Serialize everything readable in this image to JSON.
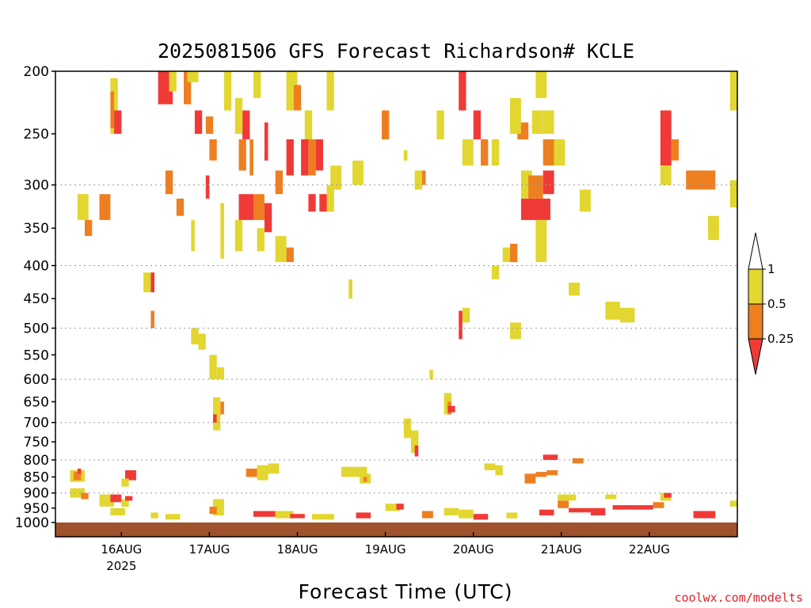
{
  "chart_data": {
    "type": "heatmap",
    "title": "2025081506 GFS Forecast Richardson# KCLE",
    "xlabel": "Forecast Time (UTC)",
    "ylabel": "",
    "credit": "coolwx.com/modelts",
    "y_axis": {
      "ticks": [
        200,
        250,
        300,
        350,
        400,
        450,
        500,
        550,
        600,
        650,
        700,
        750,
        800,
        850,
        900,
        950,
        1000
      ],
      "ylim": [
        1000,
        200
      ],
      "gridlines_at": [
        300,
        400,
        500,
        600,
        700,
        800,
        900
      ]
    },
    "x_axis": {
      "tick_labels": [
        "16AUG",
        "17AUG",
        "18AUG",
        "19AUG",
        "20AUG",
        "21AUG",
        "22AUG"
      ],
      "year_label": "2025",
      "ticks_hours": [
        18,
        42,
        66,
        90,
        114,
        138,
        162
      ],
      "xlim_hours": [
        0,
        186
      ]
    },
    "colorbar": {
      "levels": [
        "1",
        "0.5",
        "0.25"
      ],
      "bins": [
        {
          "range": "0.5-1",
          "color": "#e2d631"
        },
        {
          "range": "0.25-0.5",
          "color": "#ed7f21"
        },
        {
          "range": "<0.25",
          "color": "#f03a37"
        }
      ]
    },
    "surface_color": "#a0522d",
    "colors": {
      "yellow": "#e2d631",
      "orange": "#ed7f21",
      "red": "#f03a37",
      "grid": "#9a9a9a"
    },
    "cells": [
      {
        "t0": 15,
        "t1": 17,
        "p0": 205,
        "p1": 250,
        "c": "yellow"
      },
      {
        "t0": 15,
        "t1": 16,
        "p0": 215,
        "p1": 245,
        "c": "orange"
      },
      {
        "t0": 16,
        "t1": 18,
        "p0": 230,
        "p1": 250,
        "c": "red"
      },
      {
        "t0": 28,
        "t1": 32,
        "p0": 200,
        "p1": 225,
        "c": "red"
      },
      {
        "t0": 31,
        "t1": 33,
        "p0": 200,
        "p1": 215,
        "c": "yellow"
      },
      {
        "t0": 35,
        "t1": 37,
        "p0": 200,
        "p1": 225,
        "c": "orange"
      },
      {
        "t0": 36,
        "t1": 39,
        "p0": 200,
        "p1": 208,
        "c": "yellow"
      },
      {
        "t0": 38,
        "t1": 40,
        "p0": 230,
        "p1": 250,
        "c": "red"
      },
      {
        "t0": 41,
        "t1": 43,
        "p0": 235,
        "p1": 250,
        "c": "orange"
      },
      {
        "t0": 42,
        "t1": 44,
        "p0": 255,
        "p1": 275,
        "c": "orange"
      },
      {
        "t0": 41,
        "t1": 42,
        "p0": 290,
        "p1": 315,
        "c": "red"
      },
      {
        "t0": 30,
        "t1": 32,
        "p0": 285,
        "p1": 310,
        "c": "orange"
      },
      {
        "t0": 33,
        "t1": 35,
        "p0": 315,
        "p1": 335,
        "c": "orange"
      },
      {
        "t0": 51,
        "t1": 53,
        "p0": 230,
        "p1": 255,
        "c": "red"
      },
      {
        "t0": 50,
        "t1": 52,
        "p0": 255,
        "p1": 285,
        "c": "orange"
      },
      {
        "t0": 53,
        "t1": 54,
        "p0": 255,
        "p1": 290,
        "c": "orange"
      },
      {
        "t0": 50,
        "t1": 54,
        "p0": 310,
        "p1": 340,
        "c": "red"
      },
      {
        "t0": 54,
        "t1": 57,
        "p0": 310,
        "p1": 340,
        "c": "orange"
      },
      {
        "t0": 57,
        "t1": 59,
        "p0": 320,
        "p1": 355,
        "c": "red"
      },
      {
        "t0": 63,
        "t1": 65,
        "p0": 255,
        "p1": 290,
        "c": "red"
      },
      {
        "t0": 67,
        "t1": 69,
        "p0": 255,
        "p1": 290,
        "c": "red"
      },
      {
        "t0": 69,
        "t1": 71,
        "p0": 255,
        "p1": 290,
        "c": "orange"
      },
      {
        "t0": 71,
        "t1": 73,
        "p0": 255,
        "p1": 285,
        "c": "red"
      },
      {
        "t0": 69,
        "t1": 71,
        "p0": 310,
        "p1": 330,
        "c": "red"
      },
      {
        "t0": 63,
        "t1": 65,
        "p0": 375,
        "p1": 395,
        "c": "orange"
      },
      {
        "t0": 75,
        "t1": 78,
        "p0": 280,
        "p1": 305,
        "c": "yellow"
      },
      {
        "t0": 12,
        "t1": 15,
        "p0": 310,
        "p1": 340,
        "c": "orange"
      },
      {
        "t0": 6,
        "t1": 9,
        "p0": 310,
        "p1": 340,
        "c": "yellow"
      },
      {
        "t0": 8,
        "t1": 10,
        "p0": 340,
        "p1": 360,
        "c": "orange"
      },
      {
        "t0": 126,
        "t1": 129,
        "p0": 240,
        "p1": 255,
        "c": "orange"
      },
      {
        "t0": 127,
        "t1": 130,
        "p0": 285,
        "p1": 315,
        "c": "yellow"
      },
      {
        "t0": 127,
        "t1": 135,
        "p0": 315,
        "p1": 340,
        "c": "red"
      },
      {
        "t0": 129,
        "t1": 133,
        "p0": 290,
        "p1": 315,
        "c": "orange"
      },
      {
        "t0": 133,
        "t1": 136,
        "p0": 285,
        "p1": 310,
        "c": "red"
      },
      {
        "t0": 133,
        "t1": 136,
        "p0": 255,
        "p1": 280,
        "c": "orange"
      },
      {
        "t0": 136,
        "t1": 139,
        "p0": 255,
        "p1": 280,
        "c": "yellow"
      },
      {
        "t0": 130,
        "t1": 133,
        "p0": 230,
        "p1": 250,
        "c": "yellow"
      },
      {
        "t0": 133,
        "t1": 136,
        "p0": 230,
        "p1": 250,
        "c": "yellow"
      },
      {
        "t0": 131,
        "t1": 134,
        "p0": 200,
        "p1": 220,
        "c": "yellow"
      },
      {
        "t0": 124,
        "t1": 127,
        "p0": 220,
        "p1": 250,
        "c": "yellow"
      },
      {
        "t0": 124,
        "t1": 126,
        "p0": 370,
        "p1": 395,
        "c": "orange"
      },
      {
        "t0": 122,
        "t1": 124,
        "p0": 375,
        "p1": 395,
        "c": "yellow"
      },
      {
        "t0": 131,
        "t1": 134,
        "p0": 340,
        "p1": 395,
        "c": "yellow"
      },
      {
        "t0": 165,
        "t1": 168,
        "p0": 230,
        "p1": 255,
        "c": "red"
      },
      {
        "t0": 165,
        "t1": 168,
        "p0": 255,
        "p1": 280,
        "c": "red"
      },
      {
        "t0": 165,
        "t1": 168,
        "p0": 280,
        "p1": 300,
        "c": "yellow"
      },
      {
        "t0": 172,
        "t1": 180,
        "p0": 285,
        "p1": 305,
        "c": "orange"
      },
      {
        "t0": 168,
        "t1": 170,
        "p0": 255,
        "p1": 275,
        "c": "orange"
      },
      {
        "t0": 184,
        "t1": 186,
        "p0": 200,
        "p1": 230,
        "c": "yellow"
      },
      {
        "t0": 184,
        "t1": 186,
        "p0": 295,
        "p1": 325,
        "c": "yellow"
      },
      {
        "t0": 178,
        "t1": 181,
        "p0": 335,
        "p1": 365,
        "c": "yellow"
      },
      {
        "t0": 143,
        "t1": 146,
        "p0": 305,
        "p1": 330,
        "c": "yellow"
      },
      {
        "t0": 140,
        "t1": 143,
        "p0": 425,
        "p1": 445,
        "c": "yellow"
      },
      {
        "t0": 150,
        "t1": 154,
        "p0": 455,
        "p1": 485,
        "c": "yellow"
      },
      {
        "t0": 154,
        "t1": 158,
        "p0": 465,
        "p1": 490,
        "c": "yellow"
      },
      {
        "t0": 124,
        "t1": 127,
        "p0": 490,
        "p1": 520,
        "c": "yellow"
      },
      {
        "t0": 111,
        "t1": 113,
        "p0": 465,
        "p1": 490,
        "c": "yellow"
      },
      {
        "t0": 110,
        "t1": 111,
        "p0": 470,
        "p1": 520,
        "c": "red"
      },
      {
        "t0": 106,
        "t1": 108,
        "p0": 630,
        "p1": 680,
        "c": "yellow"
      },
      {
        "t0": 107,
        "t1": 108,
        "p0": 650,
        "p1": 680,
        "c": "orange"
      },
      {
        "t0": 107,
        "t1": 109,
        "p0": 660,
        "p1": 675,
        "c": "red"
      },
      {
        "t0": 43,
        "t1": 45,
        "p0": 640,
        "p1": 720,
        "c": "yellow"
      },
      {
        "t0": 43,
        "t1": 44,
        "p0": 680,
        "p1": 700,
        "c": "red"
      },
      {
        "t0": 45,
        "t1": 46,
        "p0": 650,
        "p1": 680,
        "c": "orange"
      },
      {
        "t0": 44,
        "t1": 46,
        "p0": 575,
        "p1": 600,
        "c": "yellow"
      },
      {
        "t0": 55,
        "t1": 58,
        "p0": 815,
        "p1": 860,
        "c": "yellow"
      },
      {
        "t0": 52,
        "t1": 55,
        "p0": 825,
        "p1": 850,
        "c": "orange"
      },
      {
        "t0": 58,
        "t1": 61,
        "p0": 810,
        "p1": 840,
        "c": "yellow"
      },
      {
        "t0": 78,
        "t1": 85,
        "p0": 820,
        "p1": 850,
        "c": "yellow"
      },
      {
        "t0": 83,
        "t1": 86,
        "p0": 840,
        "p1": 870,
        "c": "yellow"
      },
      {
        "t0": 84,
        "t1": 85,
        "p0": 850,
        "p1": 865,
        "c": "orange"
      },
      {
        "t0": 95,
        "t1": 97,
        "p0": 690,
        "p1": 740,
        "c": "yellow"
      },
      {
        "t0": 97,
        "t1": 99,
        "p0": 720,
        "p1": 780,
        "c": "yellow"
      },
      {
        "t0": 98,
        "t1": 99,
        "p0": 760,
        "p1": 790,
        "c": "red"
      },
      {
        "t0": 117,
        "t1": 120,
        "p0": 810,
        "p1": 830,
        "c": "yellow"
      },
      {
        "t0": 120,
        "t1": 122,
        "p0": 815,
        "p1": 845,
        "c": "yellow"
      },
      {
        "t0": 128,
        "t1": 131,
        "p0": 840,
        "p1": 870,
        "c": "orange"
      },
      {
        "t0": 131,
        "t1": 134,
        "p0": 835,
        "p1": 850,
        "c": "orange"
      },
      {
        "t0": 134,
        "t1": 137,
        "p0": 830,
        "p1": 845,
        "c": "orange"
      },
      {
        "t0": 133,
        "t1": 137,
        "p0": 785,
        "p1": 800,
        "c": "red"
      },
      {
        "t0": 141,
        "t1": 144,
        "p0": 795,
        "p1": 810,
        "c": "orange"
      },
      {
        "t0": 4,
        "t1": 8,
        "p0": 830,
        "p1": 865,
        "c": "yellow"
      },
      {
        "t0": 5,
        "t1": 7,
        "p0": 835,
        "p1": 860,
        "c": "orange"
      },
      {
        "t0": 6,
        "t1": 7,
        "p0": 825,
        "p1": 840,
        "c": "red"
      },
      {
        "t0": 4,
        "t1": 8,
        "p0": 885,
        "p1": 915,
        "c": "yellow"
      },
      {
        "t0": 7,
        "t1": 9,
        "p0": 900,
        "p1": 920,
        "c": "orange"
      },
      {
        "t0": 19,
        "t1": 22,
        "p0": 830,
        "p1": 860,
        "c": "red"
      },
      {
        "t0": 18,
        "t1": 20,
        "p0": 855,
        "p1": 880,
        "c": "yellow"
      },
      {
        "t0": 12,
        "t1": 16,
        "p0": 905,
        "p1": 945,
        "c": "yellow"
      },
      {
        "t0": 15,
        "t1": 18,
        "p0": 905,
        "p1": 930,
        "c": "red"
      },
      {
        "t0": 18,
        "t1": 20,
        "p0": 920,
        "p1": 945,
        "c": "yellow"
      },
      {
        "t0": 19,
        "t1": 21,
        "p0": 910,
        "p1": 925,
        "c": "red"
      },
      {
        "t0": 15,
        "t1": 19,
        "p0": 950,
        "p1": 975,
        "c": "yellow"
      },
      {
        "t0": 43,
        "t1": 46,
        "p0": 920,
        "p1": 975,
        "c": "yellow"
      },
      {
        "t0": 42,
        "t1": 44,
        "p0": 945,
        "p1": 970,
        "c": "orange"
      },
      {
        "t0": 54,
        "t1": 60,
        "p0": 960,
        "p1": 980,
        "c": "red"
      },
      {
        "t0": 60,
        "t1": 65,
        "p0": 960,
        "p1": 985,
        "c": "yellow"
      },
      {
        "t0": 64,
        "t1": 68,
        "p0": 970,
        "p1": 985,
        "c": "red"
      },
      {
        "t0": 70,
        "t1": 76,
        "p0": 970,
        "p1": 990,
        "c": "yellow"
      },
      {
        "t0": 82,
        "t1": 86,
        "p0": 965,
        "p1": 985,
        "c": "red"
      },
      {
        "t0": 90,
        "t1": 94,
        "p0": 935,
        "p1": 960,
        "c": "yellow"
      },
      {
        "t0": 93,
        "t1": 95,
        "p0": 935,
        "p1": 955,
        "c": "red"
      },
      {
        "t0": 100,
        "t1": 103,
        "p0": 960,
        "p1": 985,
        "c": "orange"
      },
      {
        "t0": 106,
        "t1": 110,
        "p0": 950,
        "p1": 975,
        "c": "yellow"
      },
      {
        "t0": 114,
        "t1": 118,
        "p0": 970,
        "p1": 990,
        "c": "red"
      },
      {
        "t0": 123,
        "t1": 126,
        "p0": 965,
        "p1": 985,
        "c": "yellow"
      },
      {
        "t0": 132,
        "t1": 136,
        "p0": 955,
        "p1": 975,
        "c": "red"
      },
      {
        "t0": 137,
        "t1": 142,
        "p0": 905,
        "p1": 925,
        "c": "yellow"
      },
      {
        "t0": 137,
        "t1": 140,
        "p0": 925,
        "p1": 950,
        "c": "orange"
      },
      {
        "t0": 140,
        "t1": 146,
        "p0": 950,
        "p1": 965,
        "c": "red"
      },
      {
        "t0": 146,
        "t1": 150,
        "p0": 950,
        "p1": 975,
        "c": "red"
      },
      {
        "t0": 150,
        "t1": 153,
        "p0": 905,
        "p1": 920,
        "c": "yellow"
      },
      {
        "t0": 152,
        "t1": 158,
        "p0": 940,
        "p1": 955,
        "c": "red"
      },
      {
        "t0": 158,
        "t1": 163,
        "p0": 940,
        "p1": 955,
        "c": "red"
      },
      {
        "t0": 163,
        "t1": 166,
        "p0": 930,
        "p1": 950,
        "c": "orange"
      },
      {
        "t0": 165,
        "t1": 168,
        "p0": 900,
        "p1": 925,
        "c": "yellow"
      },
      {
        "t0": 166,
        "t1": 168,
        "p0": 900,
        "p1": 915,
        "c": "red"
      },
      {
        "t0": 184,
        "t1": 186,
        "p0": 925,
        "p1": 945,
        "c": "yellow"
      },
      {
        "t0": 174,
        "t1": 180,
        "p0": 960,
        "p1": 985,
        "c": "red"
      },
      {
        "t0": 110,
        "t1": 114,
        "p0": 955,
        "p1": 985,
        "c": "yellow"
      },
      {
        "t0": 30,
        "t1": 34,
        "p0": 970,
        "p1": 990,
        "c": "yellow"
      },
      {
        "t0": 26,
        "t1": 28,
        "p0": 965,
        "p1": 985,
        "c": "yellow"
      },
      {
        "t0": 37,
        "t1": 39,
        "p0": 500,
        "p1": 530,
        "c": "yellow"
      },
      {
        "t0": 39,
        "t1": 41,
        "p0": 510,
        "p1": 540,
        "c": "yellow"
      },
      {
        "t0": 42,
        "t1": 44,
        "p0": 550,
        "p1": 600,
        "c": "yellow"
      },
      {
        "t0": 26,
        "t1": 27,
        "p0": 470,
        "p1": 500,
        "c": "orange"
      },
      {
        "t0": 24,
        "t1": 26,
        "p0": 410,
        "p1": 440,
        "c": "yellow"
      },
      {
        "t0": 26,
        "t1": 27,
        "p0": 410,
        "p1": 440,
        "c": "red"
      },
      {
        "t0": 37,
        "t1": 38,
        "p0": 340,
        "p1": 380,
        "c": "yellow"
      },
      {
        "t0": 45,
        "t1": 46,
        "p0": 320,
        "p1": 390,
        "c": "yellow"
      },
      {
        "t0": 49,
        "t1": 51,
        "p0": 340,
        "p1": 380,
        "c": "yellow"
      },
      {
        "t0": 55,
        "t1": 57,
        "p0": 350,
        "p1": 380,
        "c": "yellow"
      },
      {
        "t0": 60,
        "t1": 63,
        "p0": 360,
        "p1": 395,
        "c": "yellow"
      },
      {
        "t0": 81,
        "t1": 84,
        "p0": 275,
        "p1": 300,
        "c": "yellow"
      },
      {
        "t0": 89,
        "t1": 91,
        "p0": 230,
        "p1": 255,
        "c": "orange"
      },
      {
        "t0": 98,
        "t1": 100,
        "p0": 285,
        "p1": 305,
        "c": "yellow"
      },
      {
        "t0": 104,
        "t1": 106,
        "p0": 230,
        "p1": 255,
        "c": "yellow"
      },
      {
        "t0": 111,
        "t1": 114,
        "p0": 255,
        "p1": 280,
        "c": "yellow"
      },
      {
        "t0": 114,
        "t1": 116,
        "p0": 230,
        "p1": 255,
        "c": "red"
      },
      {
        "t0": 116,
        "t1": 118,
        "p0": 255,
        "p1": 280,
        "c": "orange"
      },
      {
        "t0": 119,
        "t1": 121,
        "p0": 255,
        "p1": 280,
        "c": "yellow"
      },
      {
        "t0": 110,
        "t1": 112,
        "p0": 200,
        "p1": 230,
        "c": "red"
      },
      {
        "t0": 54,
        "t1": 56,
        "p0": 200,
        "p1": 220,
        "c": "yellow"
      },
      {
        "t0": 63,
        "t1": 66,
        "p0": 200,
        "p1": 230,
        "c": "yellow"
      },
      {
        "t0": 65,
        "t1": 67,
        "p0": 210,
        "p1": 230,
        "c": "orange"
      },
      {
        "t0": 68,
        "t1": 70,
        "p0": 230,
        "p1": 255,
        "c": "yellow"
      },
      {
        "t0": 74,
        "t1": 76,
        "p0": 200,
        "p1": 230,
        "c": "yellow"
      },
      {
        "t0": 46,
        "t1": 48,
        "p0": 200,
        "p1": 230,
        "c": "yellow"
      },
      {
        "t0": 49,
        "t1": 51,
        "p0": 220,
        "p1": 250,
        "c": "yellow"
      },
      {
        "t0": 57,
        "t1": 58,
        "p0": 240,
        "p1": 275,
        "c": "red"
      },
      {
        "t0": 60,
        "t1": 62,
        "p0": 285,
        "p1": 310,
        "c": "orange"
      },
      {
        "t0": 74,
        "t1": 76,
        "p0": 300,
        "p1": 330,
        "c": "yellow"
      },
      {
        "t0": 72,
        "t1": 74,
        "p0": 310,
        "p1": 330,
        "c": "red"
      },
      {
        "t0": 119,
        "t1": 121,
        "p0": 400,
        "p1": 420,
        "c": "yellow"
      },
      {
        "t0": 80,
        "t1": 81,
        "p0": 420,
        "p1": 450,
        "c": "yellow"
      },
      {
        "t0": 95,
        "t1": 96,
        "p0": 265,
        "p1": 275,
        "c": "yellow"
      },
      {
        "t0": 100,
        "t1": 101,
        "p0": 285,
        "p1": 300,
        "c": "orange"
      },
      {
        "t0": 102,
        "t1": 103,
        "p0": 580,
        "p1": 600,
        "c": "yellow"
      }
    ]
  }
}
